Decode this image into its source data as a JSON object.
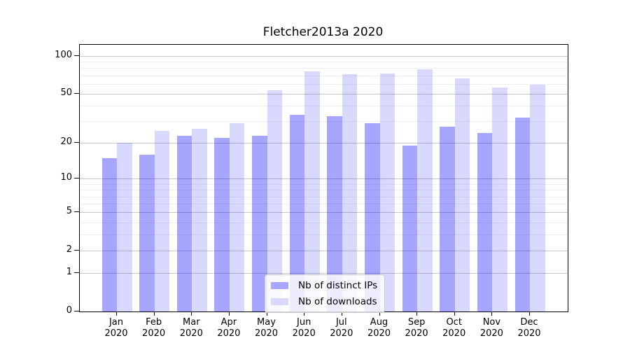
{
  "title": "Fletcher2013a 2020",
  "chart_data": {
    "type": "bar",
    "title": "Fletcher2013a 2020",
    "categories": [
      "Jan",
      "Feb",
      "Mar",
      "Apr",
      "May",
      "Jun",
      "Jul",
      "Aug",
      "Sep",
      "Oct",
      "Nov",
      "Dec"
    ],
    "year_label": "2020",
    "series": [
      {
        "name": "Nb of distinct IPs",
        "color": "#a6a6ff",
        "fill": "rgba(0,0,255,0.35)",
        "values": [
          15,
          16,
          23,
          22,
          23,
          34,
          33,
          29,
          19,
          27,
          24,
          32
        ]
      },
      {
        "name": "Nb of downloads",
        "color": "#d9d9ff",
        "fill": "rgba(0,0,255,0.15)",
        "values": [
          20,
          25,
          26,
          29,
          53,
          75,
          72,
          73,
          78,
          66,
          56,
          59
        ]
      }
    ],
    "xlabel": "",
    "ylabel": "",
    "yscale": "log1p",
    "ylim": [
      0,
      122.5
    ],
    "yticks": [
      0,
      1,
      2,
      5,
      10,
      20,
      50,
      100
    ],
    "yticks_minor": [
      3,
      4,
      6,
      7,
      8,
      9,
      30,
      40,
      60,
      70,
      80,
      90
    ],
    "grid": true,
    "legend_position": "lower center",
    "colors": {
      "grid_major": "#c8c8c8",
      "grid_minor": "#efefef",
      "spine": "#000000",
      "text": "#000000"
    }
  }
}
